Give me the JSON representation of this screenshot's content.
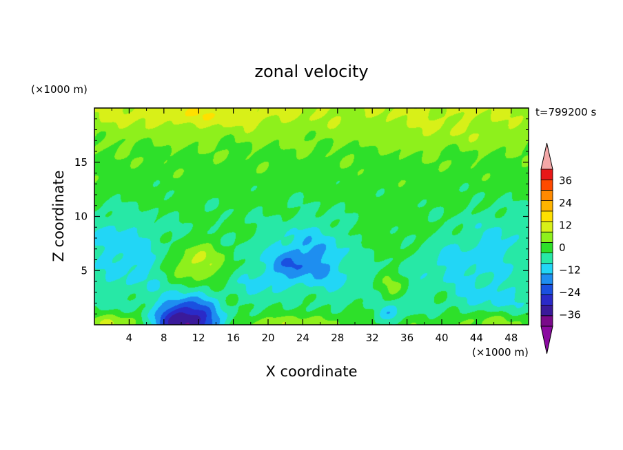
{
  "chart_data": {
    "type": "heatmap",
    "title": "zonal velocity",
    "xlabel": "X coordinate",
    "ylabel": "Z coordinate",
    "x_unit": "(×1000 m)",
    "y_unit": "(×1000 m)",
    "time_label": "t=799200 s",
    "xlim": [
      0,
      50
    ],
    "ylim": [
      0,
      20
    ],
    "xticks": [
      4,
      8,
      12,
      16,
      20,
      24,
      28,
      32,
      36,
      40,
      44,
      48
    ],
    "yticks": [
      5,
      10,
      15
    ],
    "colorbar": {
      "levels": [
        -42,
        -36,
        -30,
        -24,
        -18,
        -12,
        -6,
        0,
        6,
        12,
        18,
        24,
        30,
        36,
        42
      ],
      "tick_labels": [
        "36",
        "24",
        "12",
        "0",
        "−12",
        "−24",
        "−36"
      ],
      "tick_values": [
        36,
        24,
        12,
        0,
        -12,
        -24,
        -36
      ],
      "colors": [
        "#7a0a8a",
        "#3a1a9a",
        "#2a2ac8",
        "#1a50e0",
        "#1e8ef0",
        "#22d6f6",
        "#27e8a6",
        "#2ee02a",
        "#8ef01c",
        "#d8f018",
        "#ffe000",
        "#ffb400",
        "#ff8a00",
        "#ff4a00",
        "#e81818"
      ],
      "over_color": "#f4a8a8",
      "under_color": "#8a0aa0"
    },
    "field_features": [
      {
        "x": 25,
        "z": 6.2,
        "sx": 4.5,
        "sz": 3.2,
        "amp": -13
      },
      {
        "x": 22.5,
        "z": 5.6,
        "sx": 1.8,
        "sz": 1.2,
        "amp": -8
      },
      {
        "x": 10.5,
        "z": 0.2,
        "sx": 4.0,
        "sz": 2.0,
        "amp": -40
      },
      {
        "x": 11.8,
        "z": 5.6,
        "sx": 3.4,
        "sz": 1.9,
        "amp": 15
      },
      {
        "x": 4.5,
        "z": 6.5,
        "sx": 4.0,
        "sz": 3.2,
        "amp": -8
      },
      {
        "x": 1.5,
        "z": 8.5,
        "sx": 2.5,
        "sz": 2.0,
        "amp": -5
      },
      {
        "x": 41.0,
        "z": 5.5,
        "sx": 3.5,
        "sz": 2.5,
        "amp": -7
      },
      {
        "x": 46.5,
        "z": 7.5,
        "sx": 3.5,
        "sz": 3.2,
        "amp": -7
      },
      {
        "x": 46.0,
        "z": 2.6,
        "sx": 4.2,
        "sz": 1.5,
        "amp": -4
      },
      {
        "x": 19.0,
        "z": 4.0,
        "sx": 2.4,
        "sz": 2.0,
        "amp": -5
      },
      {
        "x": 16.0,
        "z": 1.8,
        "sx": 3.0,
        "sz": 1.0,
        "amp": 6
      },
      {
        "x": 23.5,
        "z": 2.4,
        "sx": 3.0,
        "sz": 1.1,
        "amp": 6
      },
      {
        "x": 34.0,
        "z": 3.4,
        "sx": 1.8,
        "sz": 1.4,
        "amp": 9
      },
      {
        "x": 34.0,
        "z": 1.0,
        "sx": 1.4,
        "sz": 0.8,
        "amp": -12
      },
      {
        "x": 33.0,
        "z": 8.0,
        "sx": 5.0,
        "sz": 3.0,
        "amp": 3
      },
      {
        "x": 40.0,
        "z": 3.0,
        "sx": 2.0,
        "sz": 1.5,
        "amp": 4
      },
      {
        "x": 6.0,
        "z": 1.8,
        "sx": 3.5,
        "sz": 1.2,
        "amp": 6
      },
      {
        "x": 28.0,
        "z": 1.5,
        "sx": 3.0,
        "sz": 1.2,
        "amp": 3
      },
      {
        "x": 3.0,
        "z": 0.2,
        "sx": 4.0,
        "sz": 0.8,
        "amp": 10
      },
      {
        "x": 22.0,
        "z": 0.2,
        "sx": 6.0,
        "sz": 0.7,
        "amp": 8
      },
      {
        "x": 45.0,
        "z": 0.3,
        "sx": 5.0,
        "sz": 0.8,
        "amp": 6
      },
      {
        "x": 12.0,
        "z": 19.3,
        "sx": 9.0,
        "sz": 1.1,
        "amp": 6
      },
      {
        "x": 40.0,
        "z": 17.8,
        "sx": 8.0,
        "sz": 2.0,
        "amp": 3
      }
    ]
  }
}
